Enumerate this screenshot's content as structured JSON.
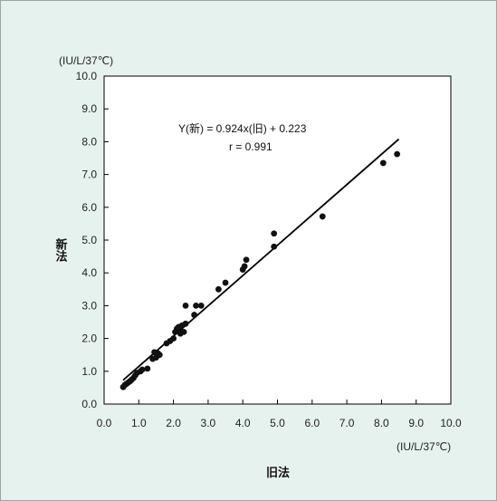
{
  "colors": {
    "background": "#e6f2ee",
    "plot_area": "#ffffff",
    "frame": "#9aa6a1",
    "marker": "#111111"
  },
  "chart_data": {
    "type": "scatter",
    "xlabel": "旧法",
    "ylabel": "新法",
    "x_unit": "(IU/L/37℃)",
    "y_unit": "(IU/L/37℃)",
    "xlim": [
      0,
      10
    ],
    "ylim": [
      0,
      10
    ],
    "x_ticks": [
      "0.0",
      "1.0",
      "2.0",
      "3.0",
      "4.0",
      "5.0",
      "6.0",
      "7.0",
      "8.0",
      "9.0",
      "10.0"
    ],
    "y_ticks": [
      "0.0",
      "1.0",
      "2.0",
      "3.0",
      "4.0",
      "5.0",
      "6.0",
      "7.0",
      "8.0",
      "9.0",
      "10.0"
    ],
    "grid": false,
    "annotations": [
      "Y(新) = 0.924x(旧) + 0.223",
      "r = 0.991"
    ],
    "regression": {
      "slope": 0.924,
      "intercept": 0.223,
      "x_range": [
        0.55,
        8.5
      ]
    },
    "points": [
      [
        0.55,
        0.52
      ],
      [
        0.6,
        0.58
      ],
      [
        0.65,
        0.62
      ],
      [
        0.7,
        0.66
      ],
      [
        0.75,
        0.7
      ],
      [
        0.8,
        0.75
      ],
      [
        0.85,
        0.8
      ],
      [
        0.9,
        0.88
      ],
      [
        0.95,
        0.95
      ],
      [
        1.05,
        1.0
      ],
      [
        1.1,
        1.05
      ],
      [
        1.25,
        1.08
      ],
      [
        1.4,
        1.38
      ],
      [
        1.45,
        1.58
      ],
      [
        1.5,
        1.42
      ],
      [
        1.55,
        1.55
      ],
      [
        1.6,
        1.5
      ],
      [
        1.8,
        1.85
      ],
      [
        1.9,
        1.92
      ],
      [
        2.0,
        2.0
      ],
      [
        2.05,
        2.2
      ],
      [
        2.1,
        2.3
      ],
      [
        2.15,
        2.35
      ],
      [
        2.2,
        2.15
      ],
      [
        2.25,
        2.4
      ],
      [
        2.3,
        2.2
      ],
      [
        2.35,
        2.45
      ],
      [
        2.35,
        3.0
      ],
      [
        2.6,
        2.72
      ],
      [
        2.65,
        3.0
      ],
      [
        2.8,
        3.0
      ],
      [
        3.3,
        3.5
      ],
      [
        3.5,
        3.7
      ],
      [
        4.0,
        4.1
      ],
      [
        4.05,
        4.2
      ],
      [
        4.1,
        4.4
      ],
      [
        4.9,
        4.8
      ],
      [
        4.9,
        5.2
      ],
      [
        6.3,
        5.72
      ],
      [
        8.05,
        7.35
      ],
      [
        8.45,
        7.62
      ]
    ]
  }
}
